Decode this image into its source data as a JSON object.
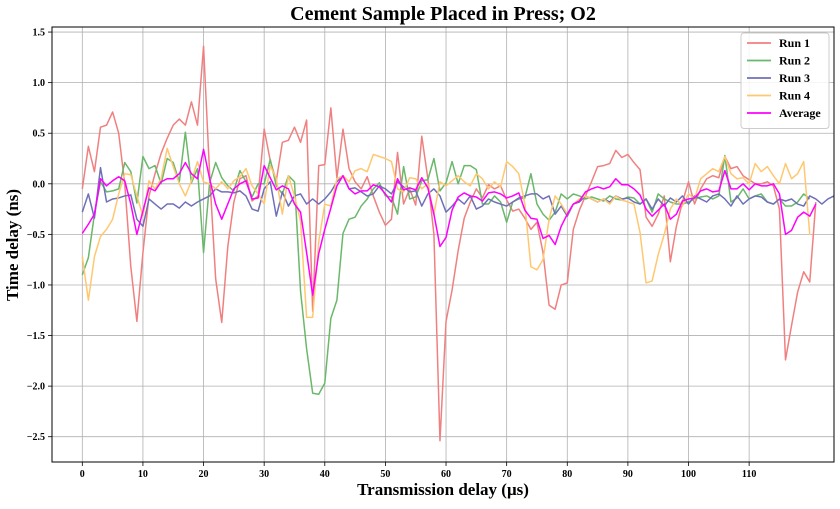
{
  "chart_data": {
    "type": "line",
    "title": "Cement Sample Placed in Press; O2",
    "xlabel": "Transmission delay (μs)",
    "ylabel": "Time delay (ns)",
    "xlim": [
      -5,
      124
    ],
    "ylim": [
      -2.75,
      1.55
    ],
    "xticks": [
      0,
      10,
      20,
      30,
      40,
      50,
      60,
      70,
      80,
      90,
      100,
      110
    ],
    "yticks": [
      -2.5,
      -2.0,
      -1.5,
      -1.0,
      -0.5,
      0.0,
      0.5,
      1.0,
      1.5
    ],
    "ytick_labels": [
      "−2.5",
      "−2.0",
      "−1.5",
      "−1.0",
      "−0.5",
      "0.0",
      "0.5",
      "1.0",
      "1.5"
    ],
    "grid": true,
    "legend_position": "top-right",
    "series": [
      {
        "name": "Run 1",
        "color": "#f08080",
        "opacity": 1,
        "values": [
          -0.05,
          0.37,
          0.12,
          0.56,
          0.58,
          0.71,
          0.5,
          0.0,
          -0.82,
          -1.36,
          -0.68,
          -0.12,
          0.1,
          0.3,
          0.45,
          0.58,
          0.64,
          0.58,
          0.81,
          0.58,
          1.36,
          0.1,
          -0.94,
          -1.37,
          -0.62,
          -0.18,
          0.05,
          0.08,
          -0.17,
          -0.12,
          0.54,
          0.23,
          0.03,
          0.41,
          0.43,
          0.56,
          0.41,
          0.63,
          -1.26,
          0.18,
          0.19,
          0.75,
          0.06,
          0.54,
          0.15,
          0.02,
          -0.05,
          0.07,
          -0.12,
          -0.28,
          -0.41,
          -0.35,
          0.31,
          -0.2,
          -0.05,
          -0.21,
          0.47,
          0.05,
          -0.5,
          -2.54,
          -1.36,
          -1.05,
          -0.66,
          -0.34,
          -0.18,
          -0.05,
          -0.14,
          -0.01,
          -0.05,
          -0.02,
          -0.16,
          -0.27,
          -0.25,
          -0.34,
          -0.45,
          -0.38,
          -0.68,
          -1.2,
          -1.24,
          -1.0,
          -0.98,
          -0.45,
          -0.26,
          -0.12,
          0.02,
          0.17,
          0.18,
          0.2,
          0.33,
          0.26,
          0.29,
          0.21,
          0.14,
          -0.33,
          -0.42,
          -0.3,
          -0.12,
          -0.77,
          -0.42,
          -0.18,
          0.02,
          -0.2,
          -0.05,
          0.05,
          0.08,
          0.06,
          0.27,
          0.15,
          0.17,
          0.08,
          0.04,
          0.0,
          0.0,
          0.02,
          -0.02,
          -0.25,
          -1.74,
          -1.4,
          -1.07,
          -0.87,
          -0.97,
          -0.18
        ]
      },
      {
        "name": "Run 2",
        "color": "#6ab86a",
        "opacity": 1,
        "values": [
          -0.9,
          -0.73,
          -0.3,
          0.02,
          -0.08,
          -0.07,
          -0.05,
          0.21,
          0.12,
          -0.19,
          0.27,
          0.15,
          0.18,
          0.0,
          0.25,
          0.21,
          0.02,
          0.51,
          0.01,
          0.15,
          -0.68,
          0.01,
          0.21,
          0.06,
          -0.02,
          -0.07,
          0.13,
          0.02,
          -0.13,
          0.0,
          0.0,
          0.24,
          -0.02,
          -0.1,
          0.08,
          0.02,
          -1.06,
          -1.63,
          -2.07,
          -2.08,
          -1.97,
          -1.33,
          -1.15,
          -0.49,
          -0.35,
          -0.33,
          -0.22,
          -0.15,
          -0.05,
          0.01,
          -0.12,
          -0.13,
          -0.3,
          0.17,
          -0.15,
          -0.13,
          0.03,
          0.04,
          0.25,
          -0.07,
          0.01,
          0.22,
          0.0,
          0.18,
          0.18,
          0.14,
          -0.2,
          -0.2,
          -0.12,
          -0.18,
          -0.38,
          -0.18,
          -0.15,
          -0.14,
          0.1,
          -0.2,
          -0.3,
          -0.36,
          -0.28,
          -0.1,
          -0.15,
          -0.1,
          -0.12,
          -0.15,
          -0.13,
          -0.15,
          -0.17,
          -0.12,
          -0.15,
          -0.16,
          -0.13,
          -0.14,
          -0.2,
          -0.15,
          -0.28,
          -0.1,
          -0.15,
          -0.18,
          -0.2,
          -0.2,
          -0.18,
          -0.15,
          -0.13,
          -0.12,
          -0.15,
          -0.12,
          0.28,
          -0.18,
          -0.14,
          -0.05,
          -0.15,
          -0.12,
          -0.1,
          -0.18,
          -0.2,
          -0.15,
          -0.22,
          -0.22,
          -0.18,
          -0.1,
          -0.15
        ]
      },
      {
        "name": "Run 3",
        "color": "#7070b8",
        "opacity": 1,
        "values": [
          -0.28,
          -0.1,
          -0.34,
          0.16,
          -0.18,
          -0.15,
          -0.14,
          -0.12,
          -0.11,
          -0.35,
          -0.42,
          -0.15,
          -0.2,
          -0.25,
          -0.2,
          -0.2,
          -0.24,
          -0.18,
          -0.22,
          -0.18,
          -0.15,
          -0.12,
          -0.05,
          -0.08,
          -0.08,
          -0.09,
          -0.07,
          -0.12,
          -0.25,
          -0.27,
          -0.05,
          0.02,
          -0.32,
          -0.08,
          -0.22,
          -0.12,
          -0.1,
          -0.2,
          -0.15,
          -0.2,
          -0.15,
          -0.08,
          0.02,
          0.08,
          -0.05,
          -0.04,
          -0.08,
          -0.12,
          -0.1,
          -0.02,
          -0.05,
          -0.1,
          0.02,
          -0.03,
          -0.08,
          -0.07,
          -0.22,
          -0.1,
          -0.05,
          -0.12,
          -0.28,
          -0.22,
          -0.15,
          -0.2,
          -0.12,
          -0.25,
          -0.22,
          -0.15,
          -0.18,
          -0.2,
          -0.22,
          -0.18,
          -0.14,
          -0.12,
          -0.1,
          -0.1,
          -0.15,
          -0.12,
          -0.3,
          -0.22,
          -0.32,
          -0.2,
          -0.18,
          -0.12,
          -0.15,
          -0.18,
          -0.15,
          -0.18,
          -0.12,
          -0.15,
          -0.14,
          -0.18,
          -0.2,
          -0.15,
          -0.25,
          -0.15,
          -0.22,
          -0.14,
          -0.18,
          -0.12,
          -0.2,
          -0.12,
          -0.15,
          -0.18,
          -0.12,
          -0.1,
          -0.15,
          -0.22,
          -0.12,
          -0.2,
          -0.15,
          -0.12,
          -0.13,
          -0.18,
          -0.2,
          -0.15,
          -0.17,
          -0.15,
          -0.2,
          -0.22,
          -0.12,
          -0.15,
          -0.2,
          -0.15,
          -0.12
        ]
      },
      {
        "name": "Run 4",
        "color": "#ffc870",
        "opacity": 1,
        "values": [
          -0.72,
          -1.15,
          -0.72,
          -0.52,
          -0.45,
          -0.35,
          -0.1,
          0.1,
          0.09,
          -0.12,
          -0.32,
          0.03,
          -0.05,
          0.05,
          0.35,
          0.17,
          0.0,
          -0.12,
          0.03,
          0.22,
          0.02,
          0.0,
          -0.05,
          0.02,
          -0.05,
          0.03,
          0.07,
          0.15,
          -0.02,
          -0.1,
          -0.2,
          0.18,
          0.05,
          -0.3,
          0.08,
          -0.12,
          -0.37,
          -1.32,
          -1.32,
          -0.57,
          -0.2,
          -0.22,
          0.05,
          0.08,
          0.02,
          0.13,
          0.15,
          0.12,
          0.29,
          0.27,
          0.25,
          0.22,
          -0.05,
          -0.08,
          0.06,
          0.05,
          -0.05,
          0.0,
          -0.3,
          0.02,
          -0.02,
          0.03,
          0.08,
          0.02,
          -0.02,
          0.1,
          0.05,
          -0.05,
          0.02,
          -0.03,
          0.22,
          0.17,
          0.1,
          -0.2,
          -0.82,
          -0.85,
          -0.75,
          -0.35,
          -0.12,
          -0.2,
          -0.3,
          -0.2,
          -0.15,
          -0.12,
          -0.15,
          -0.18,
          -0.15,
          -0.2,
          -0.12,
          -0.16,
          -0.18,
          -0.2,
          -0.48,
          -0.98,
          -0.96,
          -0.7,
          -0.5,
          -0.25,
          -0.15,
          -0.22,
          -0.1,
          -0.15,
          0.05,
          0.1,
          0.15,
          0.12,
          0.27,
          0.1,
          0.05,
          0.06,
          0.0,
          0.2,
          0.12,
          0.17,
          0.08,
          0.0,
          0.2,
          0.05,
          0.1,
          0.22,
          -0.5
        ]
      },
      {
        "name": "Average",
        "color": "#ff00ff",
        "opacity": 1,
        "values": [
          -0.49,
          -0.4,
          -0.3,
          0.05,
          -0.02,
          0.03,
          0.07,
          0.03,
          -0.2,
          -0.5,
          -0.27,
          -0.04,
          -0.07,
          0.02,
          0.05,
          0.05,
          0.1,
          0.21,
          0.1,
          0.05,
          0.34,
          0.05,
          -0.2,
          -0.35,
          -0.2,
          -0.05,
          0.0,
          0.03,
          -0.15,
          -0.14,
          0.18,
          0.06,
          -0.06,
          -0.02,
          -0.05,
          -0.2,
          -0.28,
          -0.68,
          -1.1,
          -0.69,
          -0.45,
          -0.24,
          -0.02,
          0.08,
          -0.05,
          -0.1,
          -0.07,
          -0.07,
          -0.01,
          -0.03,
          -0.1,
          -0.18,
          0.05,
          -0.06,
          -0.04,
          -0.06,
          0.06,
          -0.04,
          -0.3,
          -0.62,
          -0.53,
          -0.26,
          -0.13,
          -0.09,
          -0.12,
          -0.13,
          -0.17,
          -0.09,
          -0.08,
          -0.1,
          -0.14,
          -0.12,
          -0.09,
          -0.26,
          -0.34,
          -0.35,
          -0.54,
          -0.51,
          -0.6,
          -0.42,
          -0.3,
          -0.2,
          -0.17,
          -0.08,
          -0.05,
          -0.03,
          -0.05,
          -0.03,
          0.05,
          -0.01,
          -0.01,
          -0.05,
          -0.11,
          -0.25,
          -0.32,
          -0.26,
          -0.2,
          -0.35,
          -0.3,
          -0.17,
          -0.15,
          -0.14,
          -0.07,
          -0.05,
          -0.08,
          -0.07,
          0.13,
          -0.05,
          -0.05,
          0.0,
          -0.06,
          0.0,
          -0.02,
          -0.02,
          0.0,
          -0.1,
          -0.5,
          -0.46,
          -0.33,
          -0.28,
          -0.32,
          -0.2
        ]
      }
    ]
  }
}
